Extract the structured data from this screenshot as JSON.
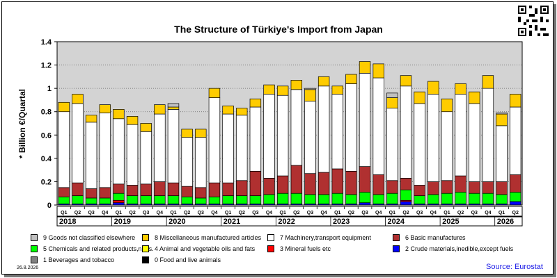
{
  "chart_data": {
    "type": "bar",
    "stacked": true,
    "title": "The Structure of Türkiye's Import from Japan",
    "ylabel": "* Billion €/Quartal",
    "xlabel": "",
    "ylim": [
      0,
      1.4
    ],
    "yticks": [
      "0",
      "0.2",
      "0.4",
      "0.6",
      "0.8",
      "1",
      "1.2",
      "1.4"
    ],
    "ytick_values": [
      0,
      0.2,
      0.4,
      0.6,
      0.8,
      1.0,
      1.2,
      1.4
    ],
    "grid": "horizontal dotted",
    "background": "#d3d3d3",
    "categories": [
      "Q1",
      "Q2",
      "Q3",
      "Q4",
      "Q1",
      "Q2",
      "Q3",
      "Q4",
      "Q1",
      "Q2",
      "Q3",
      "Q4",
      "Q1",
      "Q2",
      "Q3",
      "Q4",
      "Q1",
      "Q2",
      "Q3",
      "Q4",
      "Q1",
      "Q2",
      "Q3",
      "Q4",
      "Q1",
      "Q2",
      "Q3",
      "Q4",
      "Q1",
      "Q2",
      "Q3",
      "Q4",
      "Q1",
      "Q2"
    ],
    "years": [
      "2018",
      "2019",
      "2020",
      "2021",
      "2022",
      "2023",
      "2024",
      "2025",
      "2026"
    ],
    "series": [
      {
        "name": "0 Food and live animals",
        "color": "#000000",
        "values": [
          0,
          0,
          0,
          0,
          0,
          0,
          0,
          0,
          0,
          0,
          0,
          0,
          0,
          0,
          0,
          0,
          0,
          0,
          0,
          0,
          0,
          0,
          0,
          0,
          0,
          0,
          0,
          0,
          0,
          0,
          0,
          0,
          0,
          0
        ]
      },
      {
        "name": "1 Beverages and tobacco",
        "color": "#808080",
        "values": [
          0,
          0,
          0,
          0,
          0,
          0,
          0,
          0,
          0,
          0,
          0,
          0,
          0,
          0,
          0,
          0,
          0,
          0,
          0,
          0,
          0,
          0,
          0,
          0,
          0,
          0,
          0,
          0,
          0,
          0,
          0,
          0,
          0,
          0
        ]
      },
      {
        "name": "2 Crude materials,inedible,except fuels",
        "color": "#0000ff",
        "values": [
          0.01,
          0.01,
          0.01,
          0.01,
          0.02,
          0.01,
          0.01,
          0.01,
          0.01,
          0.01,
          0.01,
          0.01,
          0.01,
          0.01,
          0.01,
          0.01,
          0.01,
          0.01,
          0.01,
          0.01,
          0.01,
          0.01,
          0.02,
          0.01,
          0.01,
          0.03,
          0.01,
          0.01,
          0.01,
          0.01,
          0.01,
          0.01,
          0.01,
          0.03
        ]
      },
      {
        "name": "3 Mineral fuels etc",
        "color": "#ff0000",
        "values": [
          0,
          0,
          0,
          0,
          0.02,
          0,
          0,
          0,
          0,
          0,
          0,
          0,
          0,
          0,
          0,
          0,
          0,
          0,
          0,
          0,
          0,
          0,
          0,
          0,
          0,
          0.01,
          0,
          0,
          0,
          0,
          0,
          0,
          0,
          0
        ]
      },
      {
        "name": "4 Animal and vegetable oils and fats",
        "color": "#ffff00",
        "values": [
          0,
          0,
          0,
          0,
          0,
          0,
          0,
          0,
          0,
          0,
          0,
          0,
          0,
          0,
          0,
          0,
          0,
          0,
          0,
          0,
          0,
          0,
          0,
          0,
          0,
          0,
          0,
          0,
          0,
          0,
          0,
          0,
          0,
          0
        ]
      },
      {
        "name": "5 Chemicals and related products,n.e.s.",
        "color": "#00ff00",
        "values": [
          0.06,
          0.07,
          0.05,
          0.05,
          0.06,
          0.07,
          0.07,
          0.07,
          0.07,
          0.06,
          0.05,
          0.06,
          0.07,
          0.07,
          0.07,
          0.08,
          0.09,
          0.09,
          0.08,
          0.08,
          0.09,
          0.08,
          0.09,
          0.08,
          0.09,
          0.09,
          0.07,
          0.08,
          0.09,
          0.1,
          0.09,
          0.09,
          0.08,
          0.08
        ]
      },
      {
        "name": "6 Basic manufactures",
        "color": "#b03030",
        "values": [
          0.08,
          0.11,
          0.08,
          0.09,
          0.08,
          0.09,
          0.1,
          0.12,
          0.11,
          0.09,
          0.09,
          0.12,
          0.11,
          0.13,
          0.21,
          0.14,
          0.15,
          0.24,
          0.18,
          0.19,
          0.21,
          0.2,
          0.22,
          0.17,
          0.11,
          0.1,
          0.09,
          0.11,
          0.11,
          0.14,
          0.1,
          0.1,
          0.11,
          0.15
        ]
      },
      {
        "name": "7 Machinery,transport equipment",
        "color": "#ffffff",
        "values": [
          0.65,
          0.68,
          0.57,
          0.64,
          0.56,
          0.52,
          0.45,
          0.58,
          0.63,
          0.42,
          0.43,
          0.73,
          0.59,
          0.56,
          0.55,
          0.72,
          0.69,
          0.65,
          0.62,
          0.74,
          0.64,
          0.75,
          0.8,
          0.83,
          0.62,
          0.79,
          0.7,
          0.75,
          0.59,
          0.7,
          0.67,
          0.8,
          0.48,
          0.58
        ]
      },
      {
        "name": "8 Miscellaneous manufactured articles",
        "color": "#ffcc00",
        "values": [
          0.08,
          0.08,
          0.06,
          0.07,
          0.08,
          0.07,
          0.07,
          0.08,
          0.02,
          0.07,
          0.07,
          0.08,
          0.07,
          0.06,
          0.07,
          0.08,
          0.08,
          0.08,
          0.1,
          0.08,
          0.07,
          0.08,
          0.1,
          0.12,
          0.09,
          0.09,
          0.1,
          0.11,
          0.11,
          0.09,
          0.1,
          0.11,
          0.1,
          0.11
        ]
      },
      {
        "name": "9 Goods not classified elsewhere",
        "color": "#c0c0c0",
        "values": [
          0,
          0,
          0,
          0,
          0,
          0,
          0,
          0,
          0.03,
          0,
          0,
          0,
          0,
          0,
          0,
          0,
          0,
          0,
          0.01,
          0,
          0,
          0,
          0,
          0,
          0.04,
          0,
          0,
          0,
          0,
          0,
          0,
          0,
          0.01,
          0
        ]
      }
    ]
  },
  "legend_rows": [
    [
      "9 Goods not classified elsewhere",
      "8 Miscellaneous manufactured articles",
      "7 Machinery,transport equipment",
      "6 Basic manufactures"
    ],
    [
      "5 Chemicals and related products,n.e.s.",
      "4 Animal and vegetable oils and fats",
      "3 Mineral fuels etc",
      "2 Crude materials,inedible,except fuels"
    ],
    [
      "1 Beverages and tobacco",
      "0 Food and live animals"
    ]
  ],
  "date": "26.8.2026",
  "source": "Source: Eurostat",
  "colors": {
    "plot_background": "#d3d3d3",
    "source_text": "#1a1ae6"
  }
}
